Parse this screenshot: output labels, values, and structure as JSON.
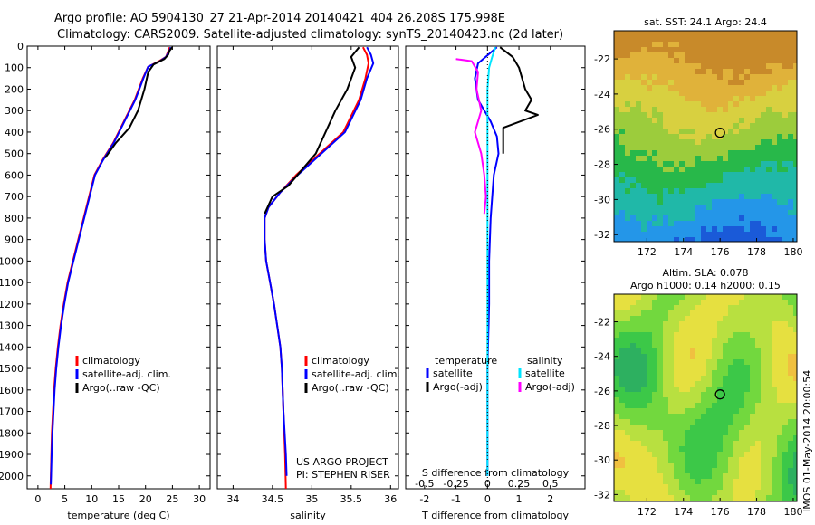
{
  "header": {
    "line1": "Argo profile: AO 5904130_27 21-Apr-2014 20140421_404 26.208S 175.998E",
    "line2": "Climatology: CARS2009. Satellite-adjusted climatology: synTS_20140423.nc (2d later)"
  },
  "side_stamp": "IMOS 01-May-2014 20:00:54",
  "project_note": [
    "US ARGO PROJECT",
    "PI: STEPHEN RISER"
  ],
  "colors": {
    "climatology": "#ff0000",
    "satellite": "#0000ff",
    "argo": "#000000",
    "sat_salinity": "#00e5ff",
    "argo_salinity": "#ff00ff"
  },
  "depth_ticks": [
    0,
    100,
    200,
    300,
    400,
    500,
    600,
    700,
    800,
    900,
    1000,
    1100,
    1200,
    1300,
    1400,
    1500,
    1600,
    1700,
    1800,
    1900,
    2000
  ],
  "chart_data": [
    {
      "type": "line",
      "id": "temperature",
      "xlabel": "temperature (deg C)",
      "xlim": [
        -2,
        32
      ],
      "ylim": [
        2060,
        0
      ],
      "xticks": [
        0,
        5,
        10,
        15,
        20,
        25,
        30
      ],
      "legend": [
        "climatology",
        "satellite-adj. clim.",
        "Argo(..raw -QC)"
      ],
      "series": [
        {
          "name": "climatology",
          "color": "#ff0000",
          "points": [
            [
              24.5,
              5
            ],
            [
              24.2,
              25
            ],
            [
              23.8,
              50
            ],
            [
              22.5,
              70
            ],
            [
              20.5,
              95
            ],
            [
              19.5,
              150
            ],
            [
              18,
              250
            ],
            [
              16,
              350
            ],
            [
              14,
              450
            ],
            [
              12,
              530
            ],
            [
              10.5,
              600
            ],
            [
              9.5,
              700
            ],
            [
              8.5,
              800
            ],
            [
              7.5,
              900
            ],
            [
              6.5,
              1000
            ],
            [
              5.5,
              1100
            ],
            [
              4.8,
              1200
            ],
            [
              4.2,
              1300
            ],
            [
              3.7,
              1400
            ],
            [
              3.3,
              1500
            ],
            [
              3,
              1600
            ],
            [
              2.8,
              1700
            ],
            [
              2.6,
              1800
            ],
            [
              2.5,
              1900
            ],
            [
              2.4,
              2000
            ],
            [
              2.35,
              2060
            ]
          ]
        },
        {
          "name": "satellite-adj. clim.",
          "color": "#0000ff",
          "points": [
            [
              24.7,
              5
            ],
            [
              24.4,
              25
            ],
            [
              23.8,
              50
            ],
            [
              22.7,
              70
            ],
            [
              20.5,
              95
            ],
            [
              19.6,
              150
            ],
            [
              18.1,
              250
            ],
            [
              16.1,
              350
            ],
            [
              14.1,
              450
            ],
            [
              12.1,
              530
            ],
            [
              10.6,
              600
            ],
            [
              9.6,
              700
            ],
            [
              8.6,
              800
            ],
            [
              7.6,
              900
            ],
            [
              6.6,
              1000
            ],
            [
              5.6,
              1100
            ],
            [
              4.9,
              1200
            ],
            [
              4.3,
              1300
            ],
            [
              3.8,
              1400
            ],
            [
              3.4,
              1500
            ],
            [
              3.1,
              1600
            ],
            [
              2.9,
              1700
            ],
            [
              2.7,
              1800
            ],
            [
              2.55,
              1900
            ],
            [
              2.45,
              2000
            ],
            [
              2.4,
              2040
            ]
          ]
        },
        {
          "name": "Argo(..raw -QC)",
          "color": "#000000",
          "points": [
            [
              25,
              5
            ],
            [
              24.5,
              20
            ],
            [
              24.2,
              40
            ],
            [
              23.5,
              60
            ],
            [
              21.5,
              85
            ],
            [
              20.5,
              120
            ],
            [
              19.8,
              200
            ],
            [
              18.6,
              300
            ],
            [
              17,
              380
            ],
            [
              14.5,
              450
            ],
            [
              12.5,
              520
            ]
          ]
        }
      ]
    },
    {
      "type": "line",
      "id": "salinity",
      "xlabel": "salinity",
      "xlim": [
        33.8,
        36.1
      ],
      "ylim": [
        2060,
        0
      ],
      "xticks": [
        34,
        34.5,
        35,
        35.5,
        36
      ],
      "legend": [
        "climatology",
        "satellite-adj. clim.",
        "Argo(..raw -QC)"
      ],
      "series": [
        {
          "name": "climatology",
          "color": "#ff0000",
          "points": [
            [
              35.65,
              5
            ],
            [
              35.7,
              40
            ],
            [
              35.72,
              80
            ],
            [
              35.68,
              150
            ],
            [
              35.6,
              250
            ],
            [
              35.4,
              400
            ],
            [
              35.1,
              500
            ],
            [
              34.8,
              600
            ],
            [
              34.6,
              680
            ],
            [
              34.45,
              750
            ],
            [
              34.4,
              800
            ],
            [
              34.4,
              900
            ],
            [
              34.42,
              1000
            ],
            [
              34.47,
              1100
            ],
            [
              34.52,
              1200
            ],
            [
              34.56,
              1300
            ],
            [
              34.6,
              1400
            ],
            [
              34.62,
              1500
            ],
            [
              34.64,
              1700
            ],
            [
              34.66,
              1900
            ],
            [
              34.67,
              2060
            ]
          ]
        },
        {
          "name": "satellite-adj. clim.",
          "color": "#0000ff",
          "points": [
            [
              35.7,
              5
            ],
            [
              35.75,
              40
            ],
            [
              35.78,
              80
            ],
            [
              35.7,
              150
            ],
            [
              35.62,
              250
            ],
            [
              35.42,
              400
            ],
            [
              35.12,
              500
            ],
            [
              34.82,
              600
            ],
            [
              34.6,
              680
            ],
            [
              34.45,
              750
            ],
            [
              34.4,
              800
            ],
            [
              34.4,
              900
            ],
            [
              34.42,
              1000
            ],
            [
              34.47,
              1100
            ],
            [
              34.52,
              1200
            ],
            [
              34.56,
              1300
            ],
            [
              34.6,
              1400
            ],
            [
              34.62,
              1500
            ],
            [
              34.64,
              1700
            ],
            [
              34.67,
              1900
            ],
            [
              34.68,
              2000
            ]
          ]
        },
        {
          "name": "Argo(..raw -QC)",
          "color": "#000000",
          "points": [
            [
              35.6,
              5
            ],
            [
              35.5,
              50
            ],
            [
              35.55,
              100
            ],
            [
              35.45,
              200
            ],
            [
              35.3,
              300
            ],
            [
              35.05,
              500
            ],
            [
              34.7,
              650
            ],
            [
              34.5,
              700
            ],
            [
              34.4,
              780
            ]
          ]
        }
      ]
    },
    {
      "type": "line",
      "id": "difference",
      "xlabel": "T difference from climatology",
      "top_axis_label": "S difference from climatology",
      "xlim": [
        -2.6,
        3.1
      ],
      "ylim": [
        2060,
        0
      ],
      "xticks": [
        -2,
        -1,
        0,
        1,
        2
      ],
      "top_xticks": [
        -0.5,
        -0.25,
        0,
        0.25,
        0.5
      ],
      "legend_groups": {
        "temperature": [
          "satellite",
          "Argo(-adj)"
        ],
        "salinity": [
          "satellite",
          "Argo(-adj)"
        ]
      },
      "series": [
        {
          "name": "temperature satellite",
          "color": "#0000ff",
          "points": [
            [
              0.3,
              5
            ],
            [
              -0.3,
              80
            ],
            [
              -0.4,
              150
            ],
            [
              -0.3,
              250
            ],
            [
              0.1,
              350
            ],
            [
              0.3,
              420
            ],
            [
              0.35,
              500
            ],
            [
              0.2,
              600
            ],
            [
              0.1,
              800
            ],
            [
              0.05,
              1000
            ],
            [
              0.05,
              1200
            ],
            [
              0,
              1500
            ],
            [
              0,
              1800
            ],
            [
              0,
              2000
            ]
          ]
        },
        {
          "name": "temperature Argo(-adj)",
          "color": "#000000",
          "points": [
            [
              0.4,
              5
            ],
            [
              0.8,
              50
            ],
            [
              1,
              100
            ],
            [
              1.2,
              200
            ],
            [
              1.4,
              250
            ],
            [
              1.2,
              300
            ],
            [
              1.6,
              320
            ],
            [
              0.5,
              380
            ],
            [
              0.5,
              500
            ]
          ]
        },
        {
          "name": "salinity satellite",
          "color": "#00e5ff",
          "points": [
            [
              0.25,
              5
            ],
            [
              0.15,
              50
            ],
            [
              0.05,
              100
            ],
            [
              0,
              200
            ],
            [
              0,
              400
            ],
            [
              0,
              800
            ],
            [
              0,
              1200
            ],
            [
              0,
              1600
            ],
            [
              0,
              2000
            ]
          ]
        },
        {
          "name": "salinity Argo(-adj)",
          "color": "#ff00ff",
          "points": [
            [
              -1,
              60
            ],
            [
              -0.5,
              70
            ],
            [
              -0.3,
              120
            ],
            [
              -0.35,
              200
            ],
            [
              -0.2,
              300
            ],
            [
              -0.4,
              400
            ],
            [
              -0.2,
              500
            ],
            [
              -0.1,
              600
            ],
            [
              -0.05,
              700
            ],
            [
              -0.1,
              780
            ]
          ]
        }
      ]
    },
    {
      "type": "heatmap",
      "id": "sst_map",
      "title": "sat. SST: 24.1  Argo: 24.4",
      "xticks": [
        172,
        174,
        176,
        178,
        180
      ],
      "yticks": [
        -22,
        -24,
        -26,
        -28,
        -30,
        -32
      ],
      "xlim": [
        170.2,
        180.2
      ],
      "ylim": [
        -32.4,
        -20.4
      ],
      "argo_position": [
        176,
        -26.2
      ],
      "color_bands": [
        "#c88a2a",
        "#e0b23a",
        "#d8d040",
        "#9ccc3c",
        "#28b84a",
        "#20b8a8",
        "#2496e8",
        "#1a5ad8"
      ]
    },
    {
      "type": "heatmap",
      "id": "sla_map",
      "title": "Altim. SLA: 0.078",
      "subtitle": "Argo h1000: 0.14  h2000: 0.15",
      "xticks": [
        172,
        174,
        176,
        178,
        180
      ],
      "yticks": [
        -22,
        -24,
        -26,
        -28,
        -30,
        -32
      ],
      "xlim": [
        170.2,
        180.2
      ],
      "ylim": [
        -32.4,
        -20.4
      ],
      "argo_position": [
        176,
        -26.2
      ],
      "color_bands": [
        "#f0c040",
        "#e6e040",
        "#b8e040",
        "#72d83e",
        "#3cc848",
        "#2db060"
      ]
    }
  ]
}
